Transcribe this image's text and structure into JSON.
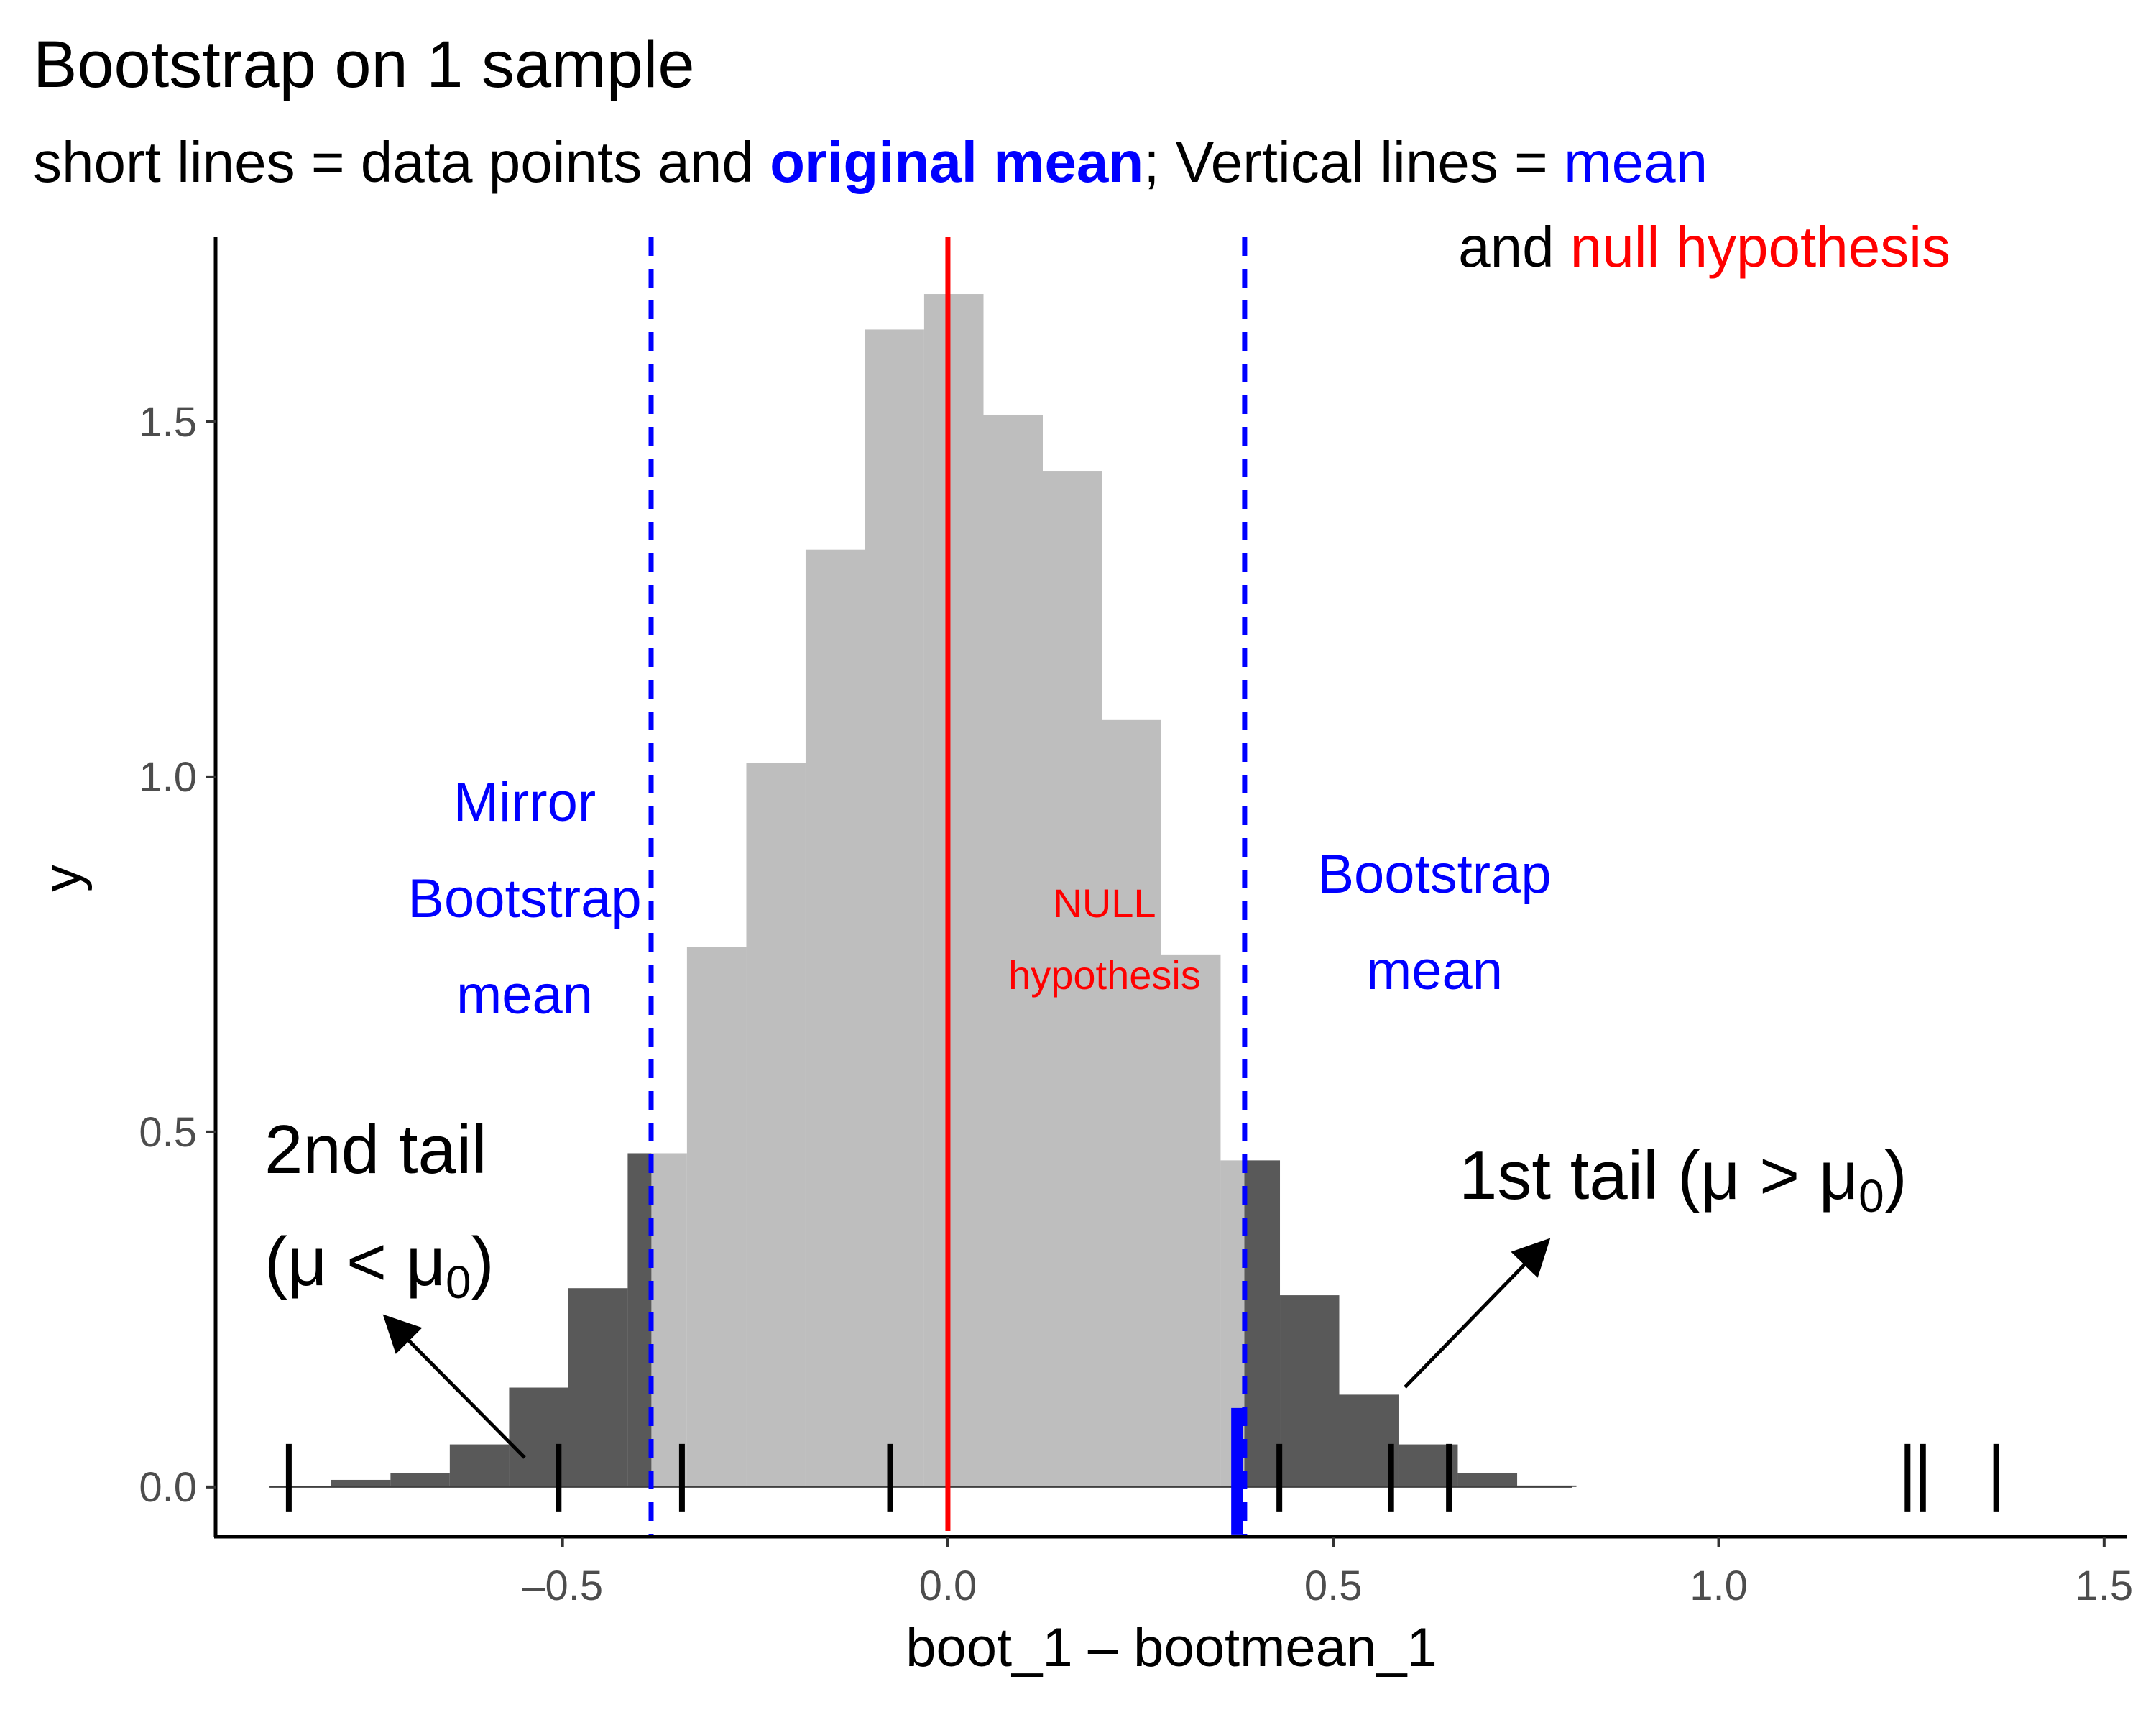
{
  "chart_data": {
    "type": "histogram",
    "title": "Bootstrap on 1 sample",
    "subtitle": {
      "part1": "short lines = data points and ",
      "original_mean": "original mean",
      "part2": "; Vertical lines = ",
      "mean": "mean",
      "part3": "and ",
      "null_hypothesis": "null hypothesis"
    },
    "xlabel": "boot_1 – bootmean_1",
    "ylabel": "y",
    "xlim": [
      -0.95,
      1.53
    ],
    "ylim": [
      -0.07,
      1.76
    ],
    "x_ticks": [
      -0.5,
      0.0,
      0.5,
      1.0,
      1.5
    ],
    "x_tick_labels": [
      "–0.5",
      "0.0",
      "0.5",
      "1.0",
      "1.5"
    ],
    "y_ticks": [
      0.0,
      0.5,
      1.0,
      1.5
    ],
    "y_tick_labels": [
      "0.0",
      "0.5",
      "1.0",
      "1.5"
    ],
    "bin_width": 0.0769,
    "bins": [
      {
        "x0": -0.8,
        "x1": -0.7231,
        "y": 0.01,
        "tail": true
      },
      {
        "x0": -0.7231,
        "x1": -0.6462,
        "y": 0.02,
        "tail": true
      },
      {
        "x0": -0.6462,
        "x1": -0.5692,
        "y": 0.06,
        "tail": true
      },
      {
        "x0": -0.5692,
        "x1": -0.4923,
        "y": 0.14,
        "tail": true
      },
      {
        "x0": -0.4923,
        "x1": -0.4154,
        "y": 0.28,
        "tail": true
      },
      {
        "x0": -0.4154,
        "x1": -0.3846,
        "y": 0.47,
        "tail": true
      },
      {
        "x0": -0.3846,
        "x1": -0.3385,
        "y": 0.47,
        "tail": false
      },
      {
        "x0": -0.3385,
        "x1": -0.2615,
        "y": 0.76,
        "tail": false
      },
      {
        "x0": -0.2615,
        "x1": -0.1846,
        "y": 1.02,
        "tail": false
      },
      {
        "x0": -0.1846,
        "x1": -0.1077,
        "y": 1.32,
        "tail": false
      },
      {
        "x0": -0.1077,
        "x1": -0.0308,
        "y": 1.63,
        "tail": false
      },
      {
        "x0": -0.0308,
        "x1": 0.0462,
        "y": 1.68,
        "tail": false
      },
      {
        "x0": 0.0462,
        "x1": 0.1231,
        "y": 1.51,
        "tail": false
      },
      {
        "x0": 0.1231,
        "x1": 0.2,
        "y": 1.43,
        "tail": false
      },
      {
        "x0": 0.2,
        "x1": 0.2769,
        "y": 1.08,
        "tail": false
      },
      {
        "x0": 0.2769,
        "x1": 0.3538,
        "y": 0.75,
        "tail": false
      },
      {
        "x0": 0.3538,
        "x1": 0.3846,
        "y": 0.46,
        "tail": false
      },
      {
        "x0": 0.3846,
        "x1": 0.4308,
        "y": 0.46,
        "tail": true
      },
      {
        "x0": 0.4308,
        "x1": 0.5077,
        "y": 0.27,
        "tail": true
      },
      {
        "x0": 0.5077,
        "x1": 0.5846,
        "y": 0.13,
        "tail": true
      },
      {
        "x0": 0.5846,
        "x1": 0.6615,
        "y": 0.06,
        "tail": true
      },
      {
        "x0": 0.6615,
        "x1": 0.7385,
        "y": 0.02,
        "tail": true
      },
      {
        "x0": 0.7385,
        "x1": 0.8154,
        "y": 0.002,
        "tail": true
      }
    ],
    "baseline_range": [
      -0.88,
      0.81
    ],
    "data_points": [
      -0.855,
      -0.505,
      -0.345,
      -0.075,
      0.43,
      0.575,
      0.65,
      1.245,
      1.265,
      1.36
    ],
    "original_mean": 0.375,
    "bootstrap_mean": 0.385,
    "mirror_bootstrap_mean": -0.385,
    "null_hypothesis": 0.0,
    "annotations": {
      "mirror": [
        "Mirror",
        "Bootstrap",
        "mean"
      ],
      "bootstrap": [
        "Bootstrap",
        "mean"
      ],
      "null": [
        "NULL",
        "hypothesis"
      ],
      "tail2": [
        "2nd tail",
        "(μ < μ",
        "0",
        ")"
      ],
      "tail1": [
        "1st tail (μ > μ",
        "0",
        ")"
      ]
    },
    "colors": {
      "tail_fill": "#595959",
      "center_fill": "#bebebe",
      "mean_line": "#0000ff",
      "null_line": "#ff0000",
      "data_tick": "#000000"
    }
  }
}
